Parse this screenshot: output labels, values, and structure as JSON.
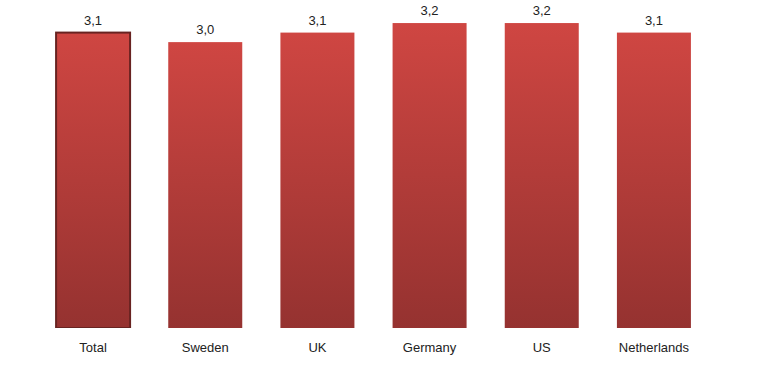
{
  "chart_data": {
    "type": "bar",
    "categories": [
      "Total",
      "Sweden",
      "UK",
      "Germany",
      "US",
      "Netherlands"
    ],
    "values": [
      3.1,
      3.0,
      3.1,
      3.2,
      3.2,
      3.1
    ],
    "value_labels": [
      "3,1",
      "3,0",
      "3,1",
      "3,2",
      "3,2",
      "3,1"
    ],
    "color": "#cf4642",
    "ylim": [
      0,
      3.4
    ],
    "data_labels": true,
    "tick_labels": "x",
    "grid": false
  }
}
